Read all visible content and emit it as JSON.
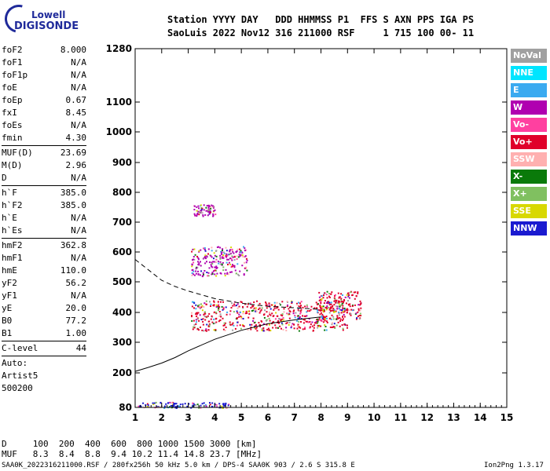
{
  "logo": {
    "line1": "Lowell",
    "line2": "DIGISONDE"
  },
  "header": {
    "line1": "Station YYYY DAY   DDD HHMMSS P1  FFS S AXN PPS IGA PS",
    "line2": "SaoLuis 2022 Nov12 316 211000 RSF     1 715 100 00- 11"
  },
  "params": [
    {
      "label": "foF2",
      "value": "8.000"
    },
    {
      "label": "foF1",
      "value": "N/A"
    },
    {
      "label": "foF1p",
      "value": "N/A"
    },
    {
      "label": "foE",
      "value": "N/A"
    },
    {
      "label": "foEp",
      "value": "0.67"
    },
    {
      "label": "fxI",
      "value": "8.45"
    },
    {
      "label": "foEs",
      "value": "N/A"
    },
    {
      "label": "fmin",
      "value": "4.30"
    },
    {
      "label": "MUF(D)",
      "value": "23.69"
    },
    {
      "label": "M(D)",
      "value": "2.96"
    },
    {
      "label": "D",
      "value": "N/A"
    },
    {
      "label": "h`F",
      "value": "385.0"
    },
    {
      "label": "h`F2",
      "value": "385.0"
    },
    {
      "label": "h`E",
      "value": "N/A"
    },
    {
      "label": "h`Es",
      "value": "N/A"
    },
    {
      "label": "hmF2",
      "value": "362.8"
    },
    {
      "label": "hmF1",
      "value": "N/A"
    },
    {
      "label": "hmE",
      "value": "110.0"
    },
    {
      "label": "yF2",
      "value": "56.2"
    },
    {
      "label": "yF1",
      "value": "N/A"
    },
    {
      "label": "yE",
      "value": "20.0"
    },
    {
      "label": "B0",
      "value": "77.2"
    },
    {
      "label": "B1",
      "value": "1.00"
    },
    {
      "label": "C-level",
      "value": "44"
    }
  ],
  "notes": [
    "Auto:",
    "Artist5",
    "500200"
  ],
  "legend": [
    {
      "label": "NoVal",
      "color": "#a0a0a0"
    },
    {
      "label": "NNE",
      "color": "#00e5ff"
    },
    {
      "label": "E",
      "color": "#3aaaf0"
    },
    {
      "label": "W",
      "color": "#b000b0"
    },
    {
      "label": "Vo-",
      "color": "#ff40a0"
    },
    {
      "label": "Vo+",
      "color": "#e0002a"
    },
    {
      "label": "SSW",
      "color": "#ffb0b0"
    },
    {
      "label": "X-",
      "color": "#0a7a0a"
    },
    {
      "label": "X+",
      "color": "#80c060"
    },
    {
      "label": "SSE",
      "color": "#d8d800"
    },
    {
      "label": "NNW",
      "color": "#1a1ad0"
    }
  ],
  "bottom": {
    "d_row": "D     100  200  400  600  800 1000 1500 3000 [km]",
    "muf_row": "MUF   8.3  8.4  8.8  9.4 10.2 11.4 14.8 23.7 [MHz]",
    "footer_left": "SAA0K_2022316211000.RSF / 280fx256h 50 kHz 5.0 km / DPS-4 SAA0K 903 / 2.6 S 315.8 E",
    "footer_right": "Ion2Png 1.3.17"
  },
  "chart_data": {
    "type": "scatter",
    "title": "",
    "xlabel": "",
    "ylabel": "",
    "xlim": [
      1,
      15
    ],
    "ylim": [
      80,
      1280
    ],
    "y_scale": "virtual height (nonlinear)",
    "x_ticks": [
      1,
      2,
      3,
      4,
      5,
      6,
      7,
      8,
      9,
      10,
      11,
      12,
      13,
      14,
      15
    ],
    "y_ticks": [
      80,
      200,
      300,
      400,
      500,
      600,
      700,
      800,
      900,
      1000,
      1100,
      1280
    ],
    "grid": false,
    "legend_position": "right",
    "echo_clusters": [
      {
        "series": "W",
        "x": [
          3.2,
          4.0
        ],
        "y": [
          720,
          760
        ]
      },
      {
        "series": "W",
        "x": [
          3.1,
          5.2
        ],
        "y": [
          520,
          620
        ]
      },
      {
        "series": "Vo+",
        "x": [
          3.1,
          9.0
        ],
        "y": [
          340,
          440
        ]
      },
      {
        "series": "Vo+",
        "x": [
          7.9,
          9.5
        ],
        "y": [
          380,
          470
        ]
      },
      {
        "series": "NNW",
        "x": [
          1.1,
          4.5
        ],
        "y": [
          80,
          100
        ]
      }
    ],
    "profile_lines": [
      {
        "name": "dashed",
        "points": [
          [
            1.0,
            575
          ],
          [
            1.5,
            540
          ],
          [
            2,
            505
          ],
          [
            2.5,
            485
          ],
          [
            3,
            470
          ],
          [
            4,
            445
          ],
          [
            5,
            430
          ],
          [
            6,
            420
          ],
          [
            7,
            415
          ],
          [
            8,
            410
          ]
        ]
      },
      {
        "name": "solid",
        "points": [
          [
            1.0,
            205
          ],
          [
            1.5,
            218
          ],
          [
            2,
            232
          ],
          [
            2.5,
            250
          ],
          [
            3,
            272
          ],
          [
            4,
            310
          ],
          [
            5,
            340
          ],
          [
            6,
            362
          ],
          [
            7,
            375
          ],
          [
            8,
            385
          ]
        ]
      }
    ]
  }
}
